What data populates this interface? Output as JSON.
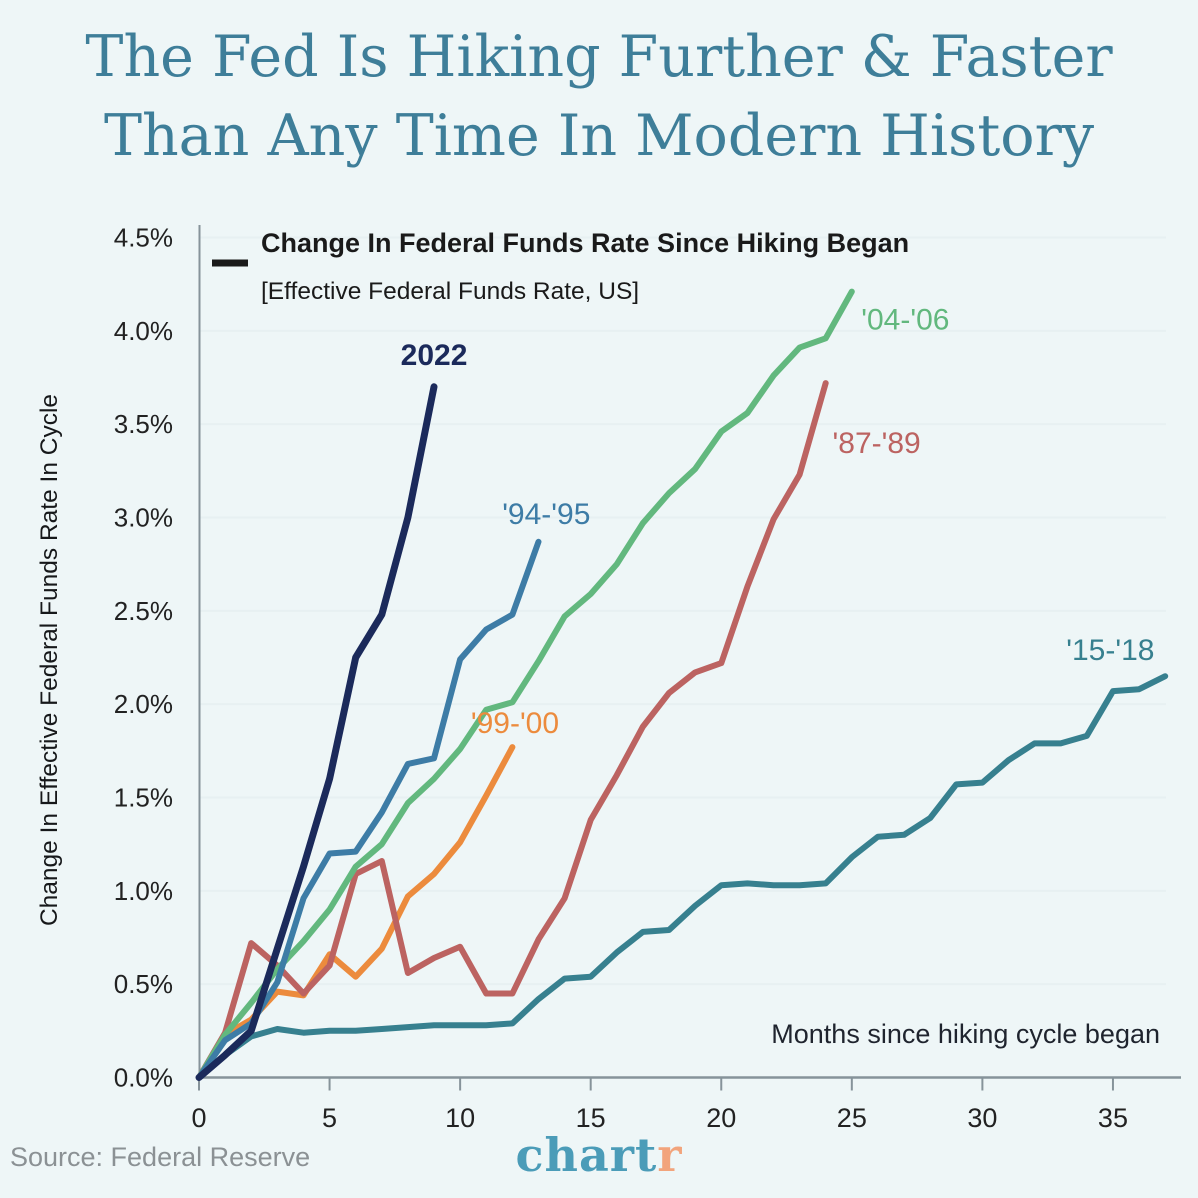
{
  "page": {
    "background": "#eef6f7"
  },
  "title": {
    "line1": "The Fed Is Hiking Further & Faster",
    "line2": "Than Any Time In Modern History",
    "color": "#3e7e99"
  },
  "legend": {
    "title": "Change In Federal Funds Rate Since Hiking Began",
    "subtitle": "[Effective Federal Funds Rate, US]",
    "swatch_color": "#1a1a1a"
  },
  "chart_data": {
    "type": "line",
    "title": "Change In Federal Funds Rate Since Hiking Began",
    "subtitle": "[Effective Federal Funds Rate, US]",
    "xlabel": "Months since hiking cycle began",
    "ylabel": "Change In Effective Federal Funds Rate In Cycle",
    "xlim": [
      0,
      37.8
    ],
    "ylim": [
      0,
      4.5
    ],
    "grid": true,
    "x_ticks": [
      0,
      5,
      10,
      15,
      20,
      25,
      30,
      35
    ],
    "y_ticks": [
      {
        "v": 0.0,
        "label": "0.0%"
      },
      {
        "v": 0.5,
        "label": "0.5%"
      },
      {
        "v": 1.0,
        "label": "1.0%"
      },
      {
        "v": 1.5,
        "label": "1.5%"
      },
      {
        "v": 2.0,
        "label": "2.0%"
      },
      {
        "v": 2.5,
        "label": "2.5%"
      },
      {
        "v": 3.0,
        "label": "3.0%"
      },
      {
        "v": 3.5,
        "label": "3.5%"
      },
      {
        "v": 4.0,
        "label": "4.0%"
      },
      {
        "v": 4.5,
        "label": "4.5%"
      }
    ],
    "series": [
      {
        "name": "15-18",
        "label": "'15-'18",
        "color": "#37808f",
        "width": 6,
        "bold_label": false,
        "label_pos": {
          "month": 34.9,
          "value": 2.29
        },
        "points": [
          [
            0,
            0
          ],
          [
            1,
            0.12
          ],
          [
            2,
            0.22
          ],
          [
            3,
            0.26
          ],
          [
            4,
            0.24
          ],
          [
            5,
            0.25
          ],
          [
            6,
            0.25
          ],
          [
            7,
            0.26
          ],
          [
            8,
            0.27
          ],
          [
            9,
            0.28
          ],
          [
            10,
            0.28
          ],
          [
            11,
            0.28
          ],
          [
            12,
            0.29
          ],
          [
            13,
            0.42
          ],
          [
            14,
            0.53
          ],
          [
            15,
            0.54
          ],
          [
            16,
            0.67
          ],
          [
            17,
            0.78
          ],
          [
            18,
            0.79
          ],
          [
            19,
            0.92
          ],
          [
            20,
            1.03
          ],
          [
            21,
            1.04
          ],
          [
            22,
            1.03
          ],
          [
            23,
            1.03
          ],
          [
            24,
            1.04
          ],
          [
            25,
            1.18
          ],
          [
            26,
            1.29
          ],
          [
            27,
            1.3
          ],
          [
            28,
            1.39
          ],
          [
            29,
            1.57
          ],
          [
            30,
            1.58
          ],
          [
            31,
            1.7
          ],
          [
            32,
            1.79
          ],
          [
            33,
            1.79
          ],
          [
            34,
            1.83
          ],
          [
            35,
            2.07
          ],
          [
            36,
            2.08
          ],
          [
            37,
            2.15
          ]
        ]
      },
      {
        "name": "99-00",
        "label": "'99-'00",
        "color": "#ec8b3d",
        "width": 6,
        "bold_label": false,
        "label_pos": {
          "month": 12.1,
          "value": 1.9
        },
        "points": [
          [
            0,
            0
          ],
          [
            1,
            0.23
          ],
          [
            2,
            0.31
          ],
          [
            3,
            0.46
          ],
          [
            4,
            0.44
          ],
          [
            5,
            0.66
          ],
          [
            6,
            0.54
          ],
          [
            7,
            0.69
          ],
          [
            8,
            0.97
          ],
          [
            9,
            1.09
          ],
          [
            10,
            1.26
          ],
          [
            11,
            1.51
          ],
          [
            12,
            1.77
          ]
        ]
      },
      {
        "name": "87-89",
        "label": "'87-'89",
        "color": "#bc6361",
        "width": 6,
        "bold_label": false,
        "label_pos": {
          "month": 25.95,
          "value": 3.4
        },
        "points": [
          [
            0,
            0
          ],
          [
            1,
            0.24
          ],
          [
            2,
            0.72
          ],
          [
            3,
            0.6
          ],
          [
            4,
            0.45
          ],
          [
            5,
            0.6
          ],
          [
            6,
            1.09
          ],
          [
            7,
            1.16
          ],
          [
            8,
            0.56
          ],
          [
            9,
            0.64
          ],
          [
            10,
            0.7
          ],
          [
            11,
            0.45
          ],
          [
            12,
            0.45
          ],
          [
            13,
            0.74
          ],
          [
            14,
            0.96
          ],
          [
            15,
            1.38
          ],
          [
            16,
            1.62
          ],
          [
            17,
            1.88
          ],
          [
            18,
            2.06
          ],
          [
            19,
            2.17
          ],
          [
            20,
            2.22
          ],
          [
            21,
            2.63
          ],
          [
            22,
            2.99
          ],
          [
            23,
            3.23
          ],
          [
            24,
            3.72
          ]
        ]
      },
      {
        "name": "04-06",
        "label": "'04-'06",
        "color": "#62b87e",
        "width": 6,
        "bold_label": false,
        "label_pos": {
          "month": 27.05,
          "value": 4.06
        },
        "points": [
          [
            0,
            0
          ],
          [
            1,
            0.23
          ],
          [
            2,
            0.4
          ],
          [
            3,
            0.58
          ],
          [
            4,
            0.73
          ],
          [
            5,
            0.9
          ],
          [
            6,
            1.13
          ],
          [
            7,
            1.25
          ],
          [
            8,
            1.47
          ],
          [
            9,
            1.6
          ],
          [
            10,
            1.76
          ],
          [
            11,
            1.97
          ],
          [
            12,
            2.01
          ],
          [
            13,
            2.23
          ],
          [
            14,
            2.47
          ],
          [
            15,
            2.59
          ],
          [
            16,
            2.75
          ],
          [
            17,
            2.97
          ],
          [
            18,
            3.13
          ],
          [
            19,
            3.26
          ],
          [
            20,
            3.46
          ],
          [
            21,
            3.56
          ],
          [
            22,
            3.76
          ],
          [
            23,
            3.91
          ],
          [
            24,
            3.96
          ],
          [
            25,
            4.21
          ]
        ]
      },
      {
        "name": "94-95",
        "label": "'94-'95",
        "color": "#3d7ca6",
        "width": 6,
        "bold_label": false,
        "label_pos": {
          "month": 13.3,
          "value": 3.02
        },
        "points": [
          [
            0,
            0
          ],
          [
            1,
            0.2
          ],
          [
            2,
            0.29
          ],
          [
            3,
            0.51
          ],
          [
            4,
            0.96
          ],
          [
            5,
            1.2
          ],
          [
            6,
            1.21
          ],
          [
            7,
            1.42
          ],
          [
            8,
            1.68
          ],
          [
            9,
            1.71
          ],
          [
            10,
            2.24
          ],
          [
            11,
            2.4
          ],
          [
            12,
            2.48
          ],
          [
            13,
            2.87
          ]
        ]
      },
      {
        "name": "2022",
        "label": "2022",
        "color": "#1b2a5b",
        "width": 7,
        "bold_label": true,
        "label_pos": {
          "month": 9.0,
          "value": 3.87
        },
        "points": [
          [
            0,
            0
          ],
          [
            1,
            0.12
          ],
          [
            2,
            0.25
          ],
          [
            3,
            0.69
          ],
          [
            4,
            1.13
          ],
          [
            5,
            1.6
          ],
          [
            6,
            2.25
          ],
          [
            7,
            2.48
          ],
          [
            8,
            3.0
          ],
          [
            9,
            3.7
          ]
        ]
      }
    ]
  },
  "x_axis_annotation": "Months since hiking cycle began",
  "footer": {
    "source": "Source: Federal Reserve",
    "logo_teal": "chart",
    "logo_orange": "r"
  },
  "style_colors": {
    "axis_text": "#222222",
    "spine": "#86939a",
    "gridline": "#e7f0f2",
    "annotation_text": "#1f242e"
  }
}
